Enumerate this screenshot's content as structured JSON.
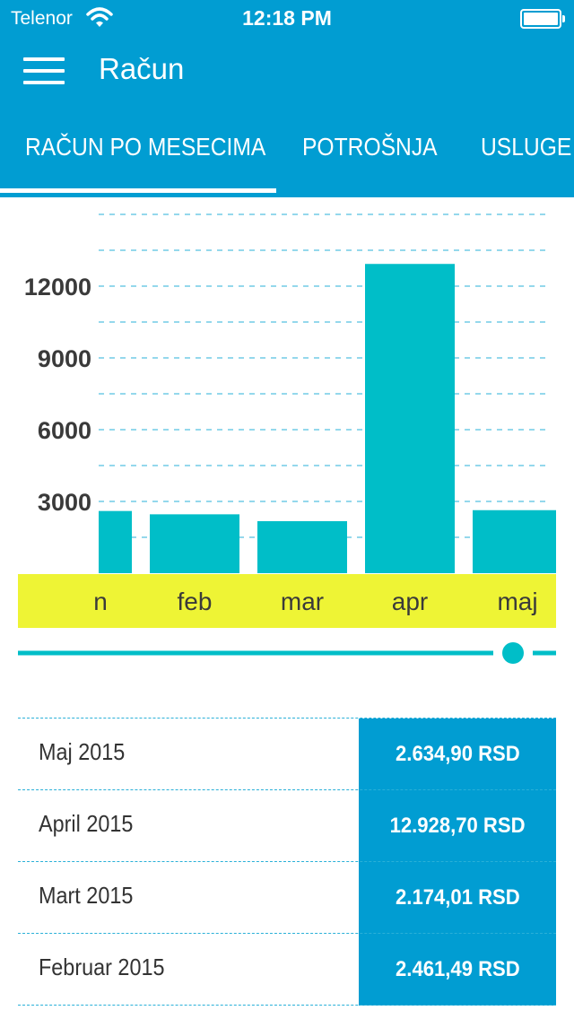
{
  "status_bar": {
    "carrier": "Telenor",
    "time": "12:18 PM"
  },
  "header": {
    "title": "Račun",
    "menu_icon": "hamburger-menu-icon"
  },
  "tabs": [
    {
      "label": "RAČUN PO MESECIMA",
      "active": true
    },
    {
      "label": "POTROŠNJA",
      "active": false
    },
    {
      "label": "USLUGE V",
      "active": false
    }
  ],
  "colors": {
    "primary": "#019dd2",
    "bar": "#00bec8",
    "month_strip": "#eef435",
    "gridline": "#2ab0d8",
    "slider": "#00bec8"
  },
  "chart_data": {
    "type": "bar",
    "categories": [
      "jan",
      "feb",
      "mar",
      "apr",
      "maj"
    ],
    "visible_category_labels": [
      "n",
      "feb",
      "mar",
      "apr",
      "maj"
    ],
    "values": [
      2600,
      2461.49,
      2174.01,
      12928.7,
      2634.9
    ],
    "ylim": [
      0,
      15000
    ],
    "yticks": [
      3000,
      6000,
      9000,
      12000
    ],
    "grid": "dashed horizontal every 1500",
    "title": "",
    "xlabel": "",
    "ylabel": ""
  },
  "slider": {
    "position": 0.92
  },
  "bills": [
    {
      "month": "Maj 2015",
      "amount": "2.634,90 RSD"
    },
    {
      "month": "April 2015",
      "amount": "12.928,70 RSD"
    },
    {
      "month": "Mart 2015",
      "amount": "2.174,01 RSD"
    },
    {
      "month": "Februar 2015",
      "amount": "2.461,49 RSD"
    }
  ]
}
